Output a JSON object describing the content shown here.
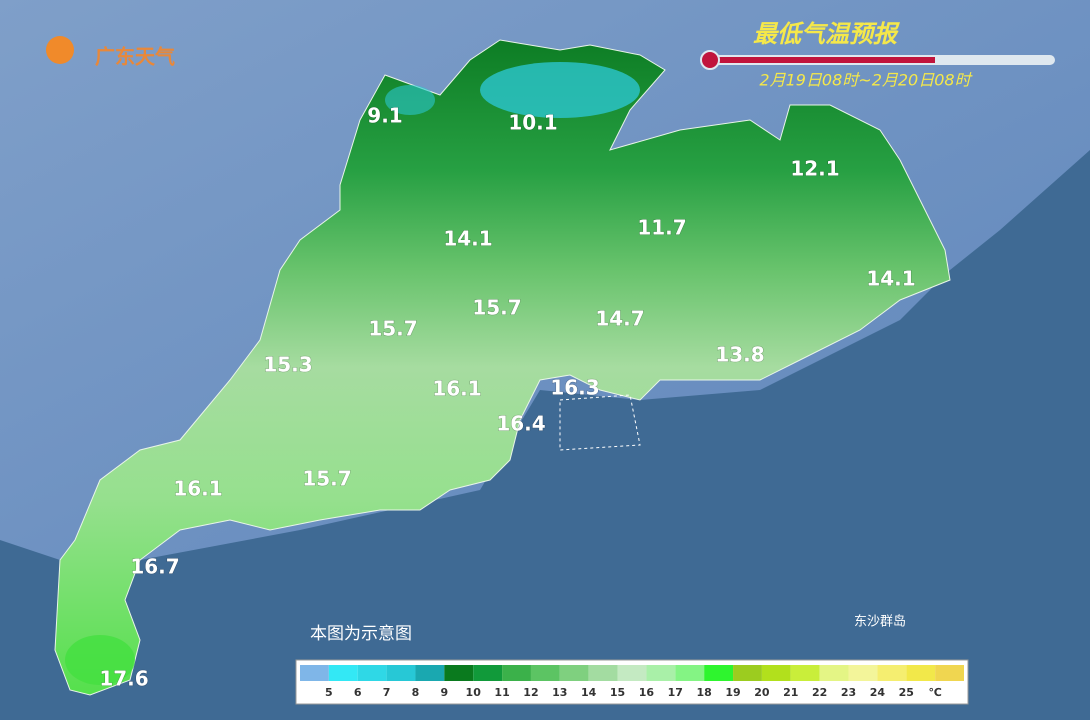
{
  "header": {
    "logo": "广东天气",
    "title": "最低气温预报",
    "subtitle": "2月19日08时~2月20日08时"
  },
  "temperature_labels": [
    "9.1",
    "10.1",
    "12.1",
    "14.1",
    "11.7",
    "14.1",
    "15.7",
    "14.7",
    "15.7",
    "15.3",
    "13.8",
    "16.1",
    "16.3",
    "16.4",
    "15.7",
    "16.1",
    "16.7",
    "17.6"
  ],
  "note": "本图为示意图",
  "island_label": "东沙群岛",
  "legend": {
    "colors": [
      "#7fb6e8",
      "#33e8f5",
      "#2fd8e6",
      "#27c8d6",
      "#1aa8b0",
      "#0a7a1e",
      "#119a3a",
      "#3bb14a",
      "#5cc463",
      "#7fd07f",
      "#a3dca1",
      "#c4eac2",
      "#a9f0a8",
      "#84f484",
      "#2ef52e",
      "#9ccc1f",
      "#b2e01c",
      "#c9ee3a",
      "#e4f585",
      "#f3f59a",
      "#f5ee70",
      "#f2e84a",
      "#f0d650"
    ],
    "labels": [
      5,
      6,
      7,
      8,
      9,
      10,
      11,
      12,
      13,
      14,
      15,
      16,
      17,
      18,
      19,
      20,
      21,
      22,
      23,
      24,
      25
    ],
    "unit": "℃"
  }
}
